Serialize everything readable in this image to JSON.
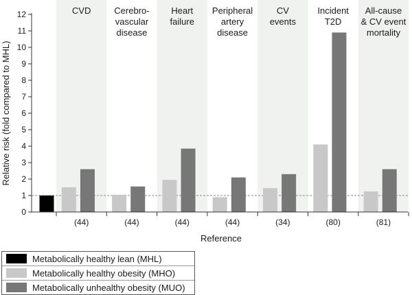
{
  "chart_data": {
    "type": "bar",
    "ylabel": "Relative risk (fold compared to MHL)",
    "xlabel": "Reference",
    "ylim": [
      0,
      12
    ],
    "yticks": [
      0,
      1,
      2,
      3,
      4,
      5,
      6,
      7,
      8,
      9,
      10,
      11,
      12
    ],
    "reference_line": 1,
    "categories": [
      {
        "label": [
          "CVD"
        ],
        "reference": "(44)"
      },
      {
        "label": [
          "Cerebro-",
          "vascular",
          "disease"
        ],
        "reference": "(44)"
      },
      {
        "label": [
          "Heart",
          "failure"
        ],
        "reference": "(44)"
      },
      {
        "label": [
          "Peripheral",
          "artery",
          "disease"
        ],
        "reference": "(44)"
      },
      {
        "label": [
          "CV",
          "events"
        ],
        "reference": "(34)"
      },
      {
        "label": [
          "Incident",
          "T2D"
        ],
        "reference": "(80)"
      },
      {
        "label": [
          "All-cause",
          "& CV event",
          "mortality"
        ],
        "reference": "(81)"
      }
    ],
    "mhl_value": 1.0,
    "series": [
      {
        "name": "Metabolically healthy lean (MHL)",
        "color": "#000000"
      },
      {
        "name": "Metabolically healthy obesity (MHO)",
        "color": "#c8c8c8",
        "values": [
          1.5,
          1.05,
          1.95,
          0.9,
          1.45,
          4.1,
          1.25
        ]
      },
      {
        "name": "Metabolically unhealthy obesity (MUO)",
        "color": "#777777",
        "values": [
          2.6,
          1.55,
          3.85,
          2.1,
          2.3,
          10.9,
          2.6
        ]
      }
    ],
    "band_color": "#f0f2f0"
  }
}
